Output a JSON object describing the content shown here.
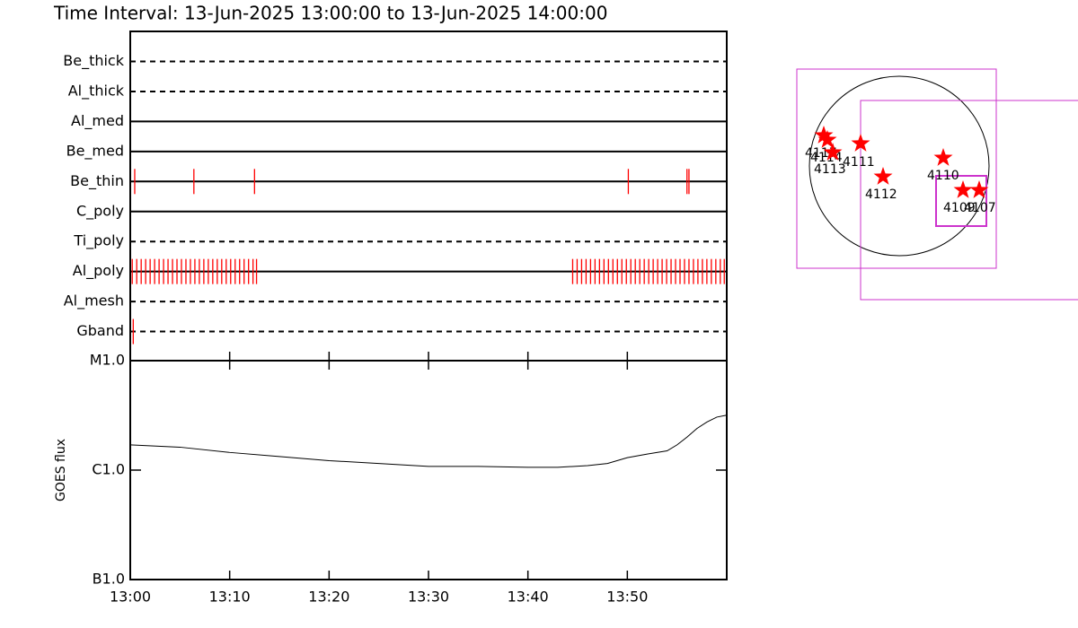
{
  "chart_data": [
    {
      "type": "timeline",
      "title": "Time Interval: 13-Jun-2025 13:00:00 to 13-Jun-2025 14:00:00",
      "xlim": [
        0,
        60
      ],
      "event_color": "#ff0000",
      "series": [
        {
          "name": "Be_thick",
          "line_style": "dashed",
          "x": []
        },
        {
          "name": "Al_thick",
          "line_style": "dashed",
          "x": []
        },
        {
          "name": "Al_med",
          "line_style": "solid",
          "x": []
        },
        {
          "name": "Be_med",
          "line_style": "solid",
          "x": []
        },
        {
          "name": "Be_thin",
          "line_style": "solid",
          "x": [
            0.45,
            6.4,
            12.5,
            50.1,
            56.0,
            56.2
          ]
        },
        {
          "name": "C_poly",
          "line_style": "solid",
          "x": []
        },
        {
          "name": "Ti_poly",
          "line_style": "dashed",
          "x": []
        },
        {
          "name": "Al_poly",
          "line_style": "solid",
          "x": [
            0.2,
            0.65,
            1.1,
            1.55,
            2.0,
            2.45,
            2.9,
            3.35,
            3.8,
            4.25,
            4.7,
            5.15,
            5.6,
            6.05,
            6.5,
            6.95,
            7.4,
            7.85,
            8.3,
            8.75,
            9.2,
            9.65,
            10.1,
            10.55,
            11.0,
            11.45,
            11.9,
            12.35,
            12.7,
            44.5,
            44.95,
            45.4,
            45.85,
            46.3,
            46.75,
            47.2,
            47.65,
            48.1,
            48.55,
            49.0,
            49.45,
            49.9,
            50.35,
            50.8,
            51.25,
            51.7,
            52.15,
            52.6,
            53.05,
            53.5,
            53.95,
            54.4,
            54.85,
            55.3,
            55.75,
            56.2,
            56.65,
            57.1,
            57.55,
            58.0,
            58.45,
            58.9,
            59.35,
            59.75
          ]
        },
        {
          "name": "Al_mesh",
          "line_style": "dashed",
          "x": []
        },
        {
          "name": "Gband",
          "line_style": "dashed",
          "x": [
            0.3
          ]
        }
      ]
    },
    {
      "type": "line",
      "ylabel": "GOES flux",
      "log_scale": true,
      "xlim": [
        0,
        60
      ],
      "xticks": [
        {
          "value": 0,
          "label": "13:00"
        },
        {
          "value": 10,
          "label": "13:10"
        },
        {
          "value": 20,
          "label": "13:20"
        },
        {
          "value": 30,
          "label": "13:30"
        },
        {
          "value": 40,
          "label": "13:40"
        },
        {
          "value": 50,
          "label": "13:50"
        }
      ],
      "ylim": [
        1e-07,
        1e-05
      ],
      "yticks": [
        {
          "value": 1e-05,
          "label": "M1.0"
        },
        {
          "value": 1e-06,
          "label": "C1.0"
        },
        {
          "value": 1e-07,
          "label": "B1.0"
        }
      ],
      "color": "#000000",
      "x": [
        0,
        5,
        10,
        15,
        20,
        25,
        30,
        35,
        40,
        43,
        46,
        48,
        50,
        52,
        54,
        55,
        56,
        57,
        58,
        59,
        60
      ],
      "values": [
        1.7e-06,
        1.62e-06,
        1.45e-06,
        1.33e-06,
        1.22e-06,
        1.15e-06,
        1.08e-06,
        1.08e-06,
        1.06e-06,
        1.06e-06,
        1.1e-06,
        1.15e-06,
        1.3e-06,
        1.4e-06,
        1.5e-06,
        1.7e-06,
        2e-06,
        2.4e-06,
        2.75e-06,
        3.05e-06,
        3.18e-06
      ]
    },
    {
      "type": "map",
      "regions": [
        "4117",
        "4114",
        "4113",
        "4111",
        "4112",
        "4110",
        "4109",
        "4107"
      ],
      "marker_color": "#ff0000",
      "box_color": "#cc33cc"
    }
  ]
}
